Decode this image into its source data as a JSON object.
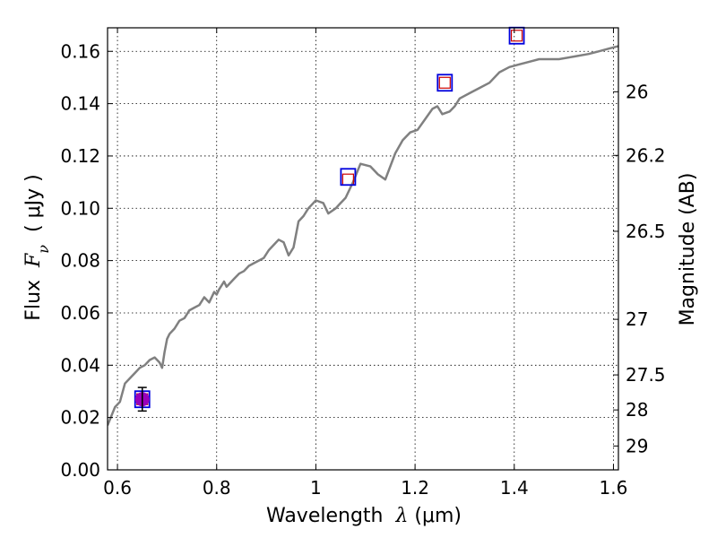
{
  "chart_data": {
    "type": "scatter",
    "xlabel": {
      "prefix": "Wavelength  ",
      "symbol": "λ",
      "suffix": " (μm)"
    },
    "ylabel": {
      "prefix": "Flux  ",
      "symbol": "F",
      "subscript": "ν",
      "suffix": "  ( μJy )"
    },
    "y2label": "Magnitude (AB)",
    "xlim": [
      0.58,
      1.61
    ],
    "ylim": [
      0.0,
      0.169
    ],
    "grid": true,
    "x_ticks": [
      {
        "value": 0.6,
        "label": "0.6"
      },
      {
        "value": 0.8,
        "label": "0.8"
      },
      {
        "value": 1.0,
        "label": "1"
      },
      {
        "value": 1.2,
        "label": "1.2"
      },
      {
        "value": 1.4,
        "label": "1.4"
      },
      {
        "value": 1.6,
        "label": "1.6"
      }
    ],
    "y_ticks": [
      {
        "value": 0.0,
        "label": "0.00"
      },
      {
        "value": 0.02,
        "label": "0.02"
      },
      {
        "value": 0.04,
        "label": "0.04"
      },
      {
        "value": 0.06,
        "label": "0.06"
      },
      {
        "value": 0.08,
        "label": "0.08"
      },
      {
        "value": 0.1,
        "label": "0.10"
      },
      {
        "value": 0.12,
        "label": "0.12"
      },
      {
        "value": 0.14,
        "label": "0.14"
      },
      {
        "value": 0.16,
        "label": "0.16"
      }
    ],
    "mag_ticks": [
      {
        "value": 26,
        "label": "26"
      },
      {
        "value": 26.2,
        "label": "26.2"
      },
      {
        "value": 26.5,
        "label": "26.5"
      },
      {
        "value": 27,
        "label": "27"
      },
      {
        "value": 27.5,
        "label": "27.5"
      },
      {
        "value": 28,
        "label": "28"
      },
      {
        "value": 29,
        "label": "29"
      }
    ],
    "series": [
      {
        "kind": "line",
        "color": "#808080",
        "x": [
          0.58,
          0.595,
          0.605,
          0.615,
          0.625,
          0.635,
          0.645,
          0.655,
          0.665,
          0.675,
          0.685,
          0.69,
          0.695,
          0.7,
          0.705,
          0.715,
          0.725,
          0.735,
          0.745,
          0.755,
          0.765,
          0.775,
          0.785,
          0.795,
          0.8,
          0.805,
          0.815,
          0.82,
          0.825,
          0.835,
          0.845,
          0.855,
          0.865,
          0.875,
          0.885,
          0.895,
          0.905,
          0.915,
          0.925,
          0.935,
          0.945,
          0.955,
          0.96,
          0.965,
          0.975,
          0.985,
          1.0,
          1.015,
          1.025,
          1.04,
          1.05,
          1.06,
          1.075,
          1.09,
          1.11,
          1.125,
          1.14,
          1.16,
          1.175,
          1.19,
          1.205,
          1.22,
          1.235,
          1.245,
          1.255,
          1.27,
          1.28,
          1.29,
          1.31,
          1.33,
          1.35,
          1.37,
          1.39,
          1.41,
          1.43,
          1.45,
          1.47,
          1.49,
          1.52,
          1.55,
          1.57,
          1.59,
          1.61
        ],
        "y": [
          0.017,
          0.024,
          0.026,
          0.033,
          0.035,
          0.037,
          0.039,
          0.04,
          0.042,
          0.043,
          0.041,
          0.039,
          0.045,
          0.05,
          0.052,
          0.054,
          0.057,
          0.058,
          0.061,
          0.062,
          0.063,
          0.066,
          0.064,
          0.068,
          0.067,
          0.069,
          0.072,
          0.07,
          0.071,
          0.073,
          0.075,
          0.076,
          0.078,
          0.079,
          0.08,
          0.081,
          0.084,
          0.086,
          0.088,
          0.087,
          0.082,
          0.085,
          0.09,
          0.095,
          0.097,
          0.1,
          0.103,
          0.102,
          0.098,
          0.1,
          0.102,
          0.104,
          0.11,
          0.117,
          0.116,
          0.113,
          0.111,
          0.121,
          0.126,
          0.129,
          0.13,
          0.134,
          0.138,
          0.139,
          0.136,
          0.137,
          0.139,
          0.142,
          0.144,
          0.146,
          0.148,
          0.152,
          0.154,
          0.155,
          0.156,
          0.157,
          0.157,
          0.157,
          0.158,
          0.159,
          0.16,
          0.161,
          0.162
        ]
      },
      {
        "kind": "model_points",
        "marker": "open-square",
        "color": "#cc0000",
        "x": [
          0.65,
          1.065,
          1.26,
          1.405
        ],
        "y": [
          0.027,
          0.111,
          0.148,
          0.166
        ]
      },
      {
        "kind": "observed_points",
        "marker": "open-square",
        "color": "#0000dd",
        "x": [
          0.65,
          1.065,
          1.26,
          1.405
        ],
        "y": [
          0.027,
          0.112,
          0.148,
          0.166
        ]
      },
      {
        "kind": "detection",
        "marker": "filled-circle",
        "color": "#9900bb",
        "x": [
          0.65
        ],
        "y": [
          0.027
        ],
        "yerr": [
          0.0045
        ]
      }
    ]
  }
}
